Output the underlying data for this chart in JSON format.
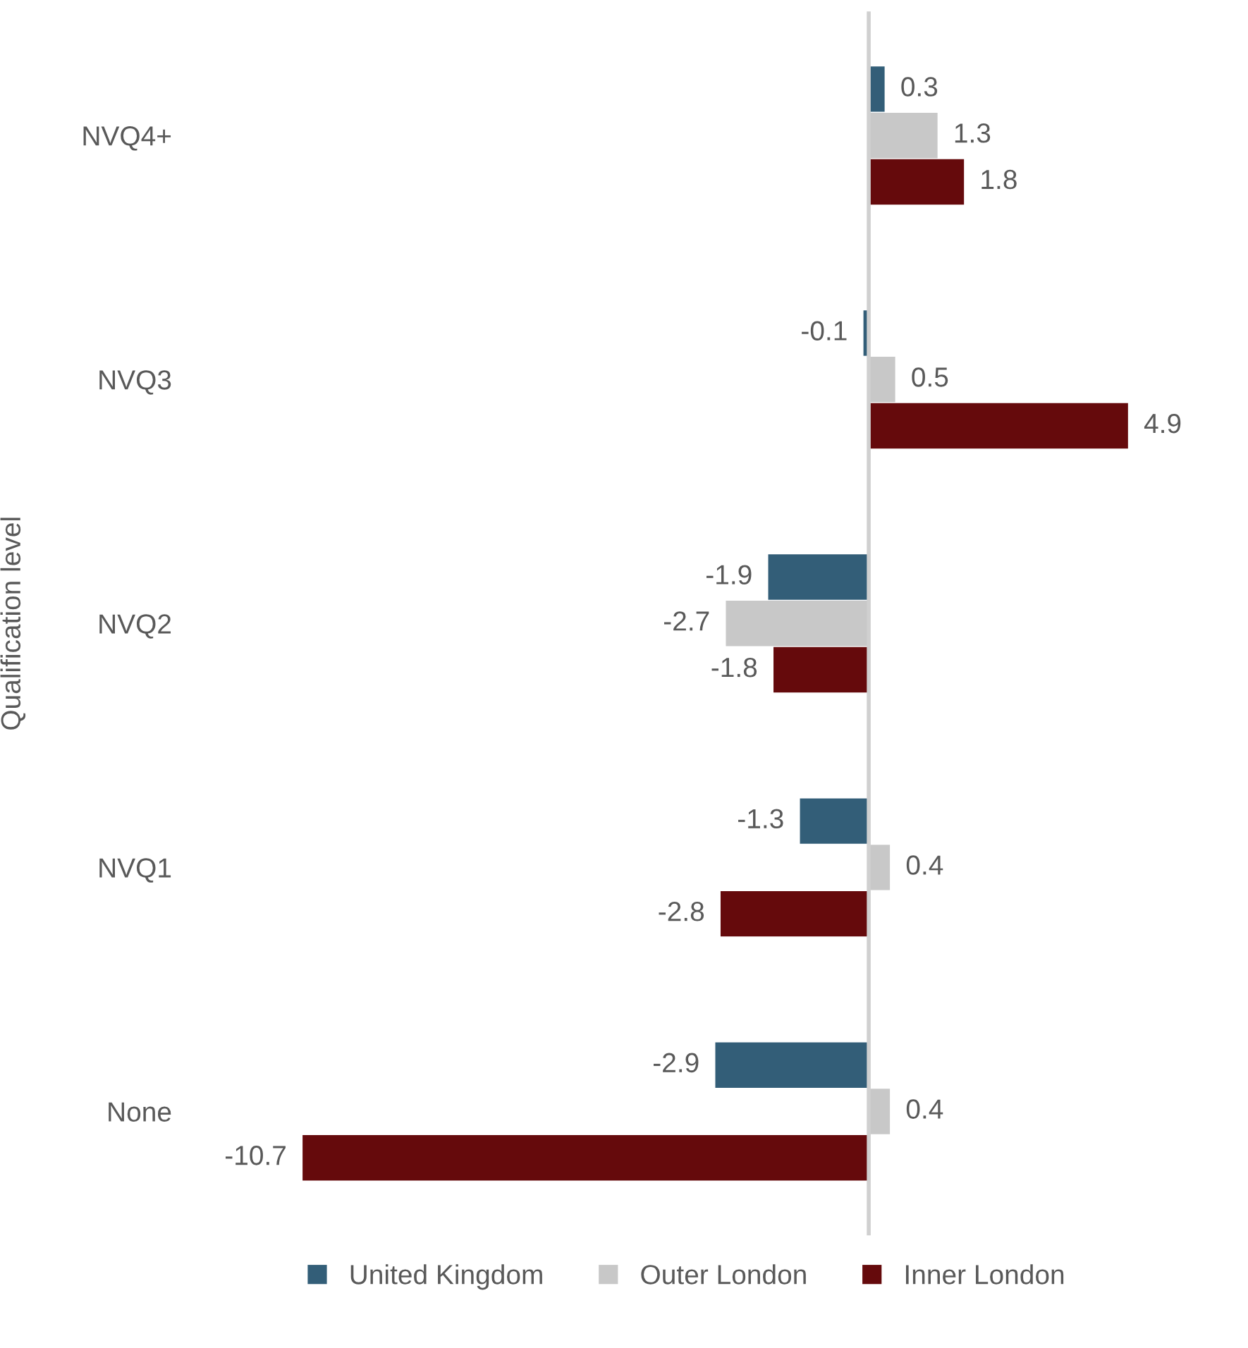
{
  "chart_data": {
    "type": "bar",
    "orientation": "horizontal",
    "ylabel": "Qualification level",
    "categories": [
      "NVQ4+",
      "NVQ3",
      "NVQ2",
      "NVQ1",
      "None"
    ],
    "series": [
      {
        "name": "United Kingdom",
        "color": "#335e78",
        "values": [
          0.3,
          -0.1,
          -1.9,
          -1.3,
          -2.9
        ]
      },
      {
        "name": "Outer London",
        "color": "#c8c8c8",
        "values": [
          1.3,
          0.5,
          -2.7,
          0.4,
          0.4
        ]
      },
      {
        "name": "Inner London",
        "color": "#650a0c",
        "values": [
          1.8,
          4.9,
          -1.8,
          -2.8,
          -10.7
        ]
      }
    ],
    "data_labels": true,
    "legend": "bottom",
    "grid": false
  }
}
